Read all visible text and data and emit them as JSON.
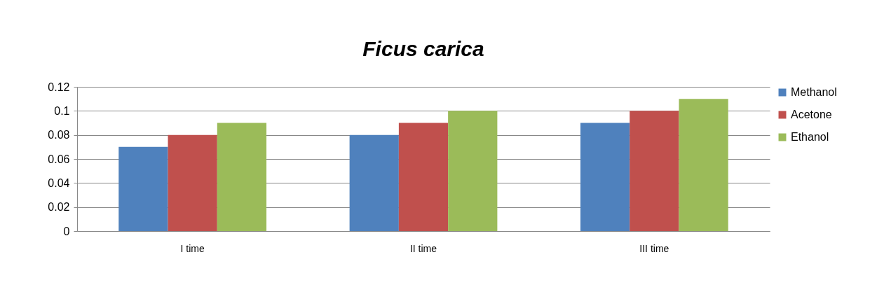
{
  "chart_data": {
    "type": "bar",
    "title": "Ficus carica",
    "categories": [
      "I time",
      "II time",
      "III time"
    ],
    "series": [
      {
        "name": "Methanol",
        "color": "#4f81bd",
        "values": [
          0.07,
          0.08,
          0.09
        ]
      },
      {
        "name": "Acetone",
        "color": "#c0504d",
        "values": [
          0.08,
          0.09,
          0.1
        ]
      },
      {
        "name": "Ethanol",
        "color": "#9bbb59",
        "values": [
          0.09,
          0.1,
          0.11
        ]
      }
    ],
    "ylim": [
      0,
      0.12
    ],
    "yticks": [
      0,
      0.02,
      0.04,
      0.06,
      0.08,
      0.1,
      0.12
    ],
    "grid": "y",
    "legend": "right"
  }
}
